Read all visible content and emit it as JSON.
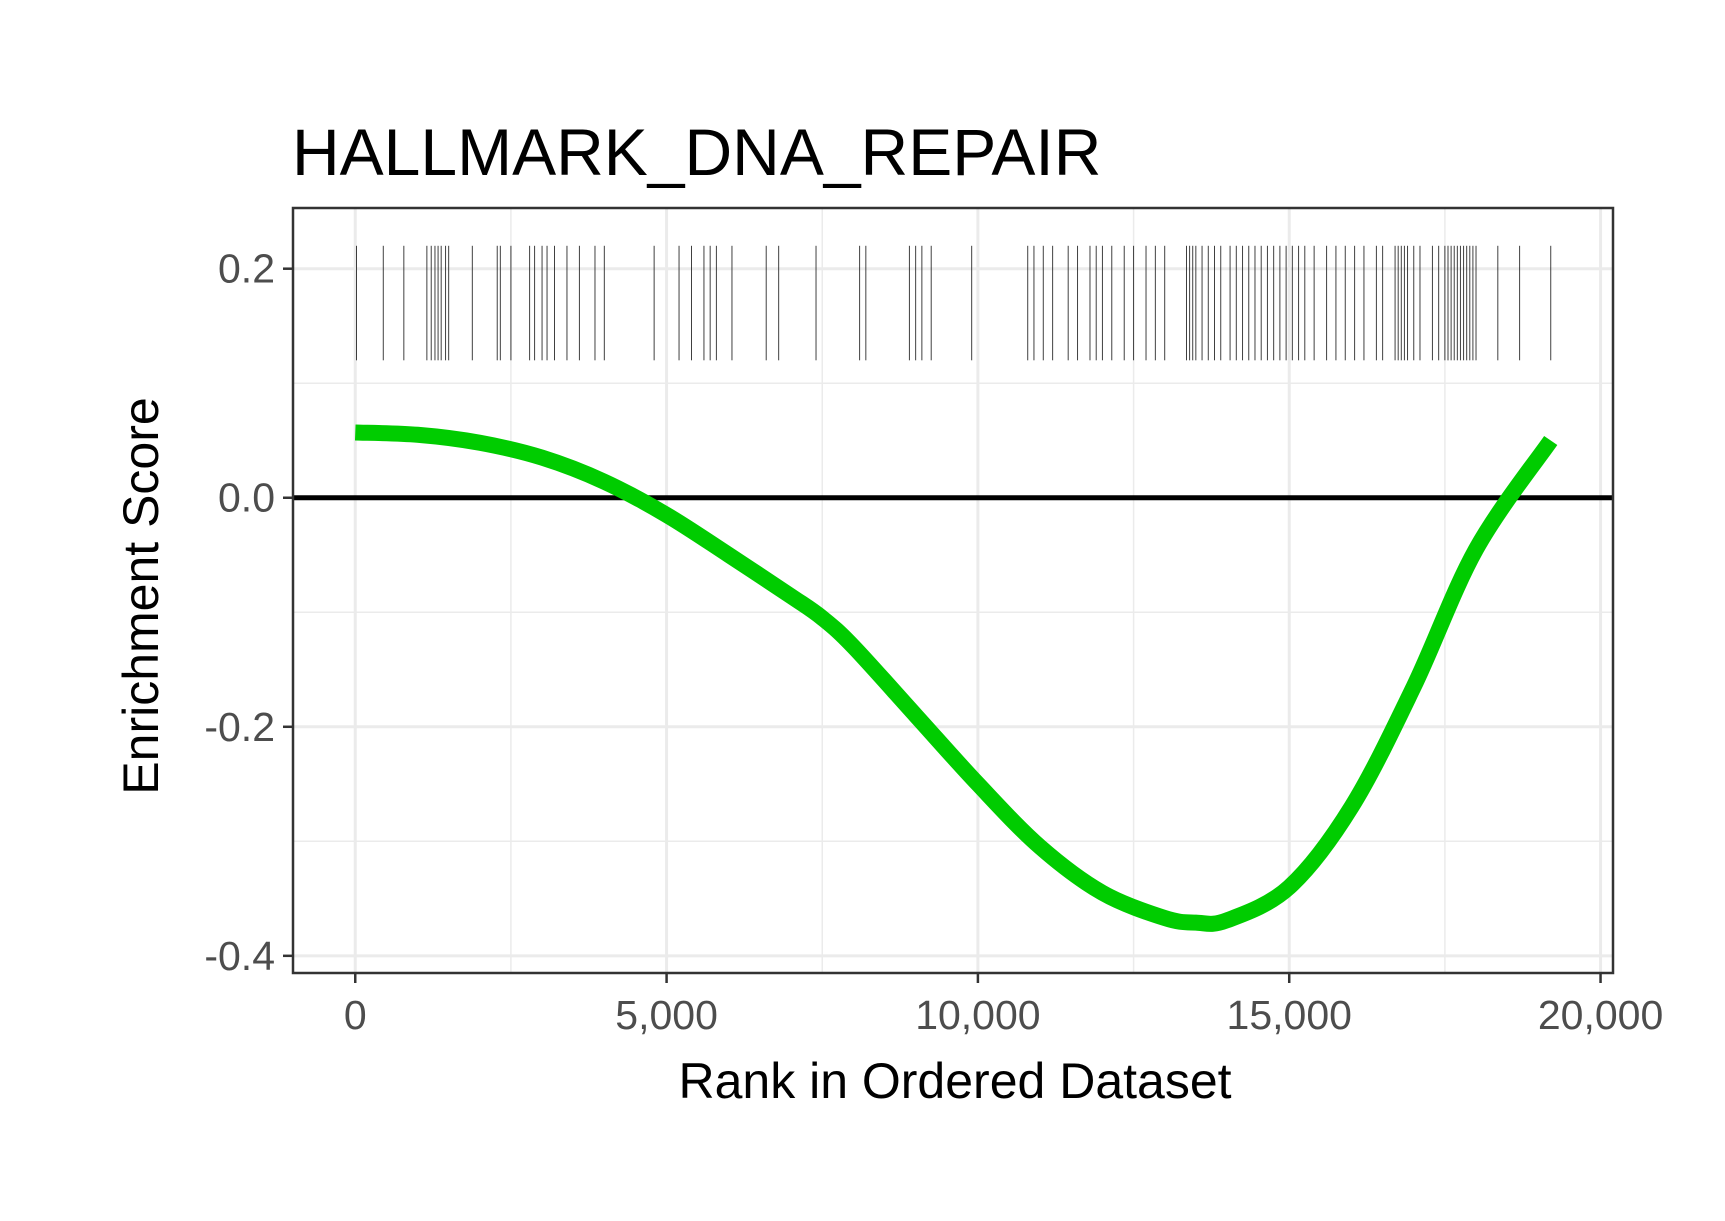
{
  "colors": {
    "background": "#ffffff",
    "panel_border": "#333333",
    "grid": "#ebebeb",
    "curve": "#00cc00",
    "zero_line": "#000000",
    "hits": "#000000",
    "tick_text": "#4d4d4d"
  },
  "chart_data": {
    "type": "line",
    "title": "HALLMARK_DNA_REPAIR",
    "xlabel": "Rank in Ordered Dataset",
    "ylabel": "Enrichment Score",
    "xlim": [
      -1000,
      20200
    ],
    "ylim": [
      -0.415,
      0.253
    ],
    "x_ticks": [
      0,
      5000,
      10000,
      15000,
      20000
    ],
    "x_tick_labels": [
      "0",
      "5,000",
      "10,000",
      "15,000",
      "20,000"
    ],
    "y_ticks": [
      -0.4,
      -0.2,
      0.0,
      0.2
    ],
    "y_tick_labels": [
      "-0.4",
      "-0.2",
      "0.0",
      "0.2"
    ],
    "grid": true,
    "reference_line_y": 0.0,
    "series": [
      {
        "x": [
          0,
          1000,
          2000,
          3000,
          4000,
          5000,
          6000,
          7000,
          7500,
          8000,
          9000,
          10000,
          11000,
          12000,
          13000,
          13500,
          14000,
          15000,
          16000,
          17000,
          18000,
          19200
        ],
        "y": [
          0.057,
          0.055,
          0.048,
          0.035,
          0.014,
          -0.015,
          -0.05,
          -0.086,
          -0.105,
          -0.13,
          -0.19,
          -0.25,
          -0.305,
          -0.345,
          -0.367,
          -0.371,
          -0.369,
          -0.34,
          -0.27,
          -0.165,
          -0.045,
          0.05
        ]
      }
    ],
    "hits": {
      "y_range": [
        0.12,
        0.22
      ],
      "positions": [
        20,
        450,
        780,
        1150,
        1220,
        1280,
        1330,
        1380,
        1450,
        1500,
        1880,
        2280,
        2330,
        2500,
        2800,
        2880,
        3000,
        3080,
        3200,
        3400,
        3600,
        3850,
        4000,
        4800,
        5200,
        5400,
        5600,
        5700,
        5800,
        6050,
        6600,
        6800,
        7400,
        8100,
        8200,
        8900,
        9000,
        9100,
        9250,
        9900,
        10800,
        10900,
        11050,
        11200,
        11450,
        11600,
        11800,
        11900,
        12000,
        12150,
        12350,
        12500,
        12700,
        12850,
        13000,
        13350,
        13400,
        13450,
        13500,
        13600,
        13700,
        13800,
        13900,
        14050,
        14150,
        14250,
        14350,
        14450,
        14550,
        14650,
        14750,
        14850,
        14950,
        15050,
        15150,
        15250,
        15400,
        15600,
        15750,
        15900,
        16050,
        16200,
        16400,
        16500,
        16700,
        16750,
        16800,
        16850,
        16900,
        17000,
        17100,
        17300,
        17400,
        17500,
        17550,
        17600,
        17650,
        17700,
        17750,
        17800,
        17850,
        17900,
        17950,
        18000,
        18350,
        18700,
        19200
      ]
    }
  }
}
